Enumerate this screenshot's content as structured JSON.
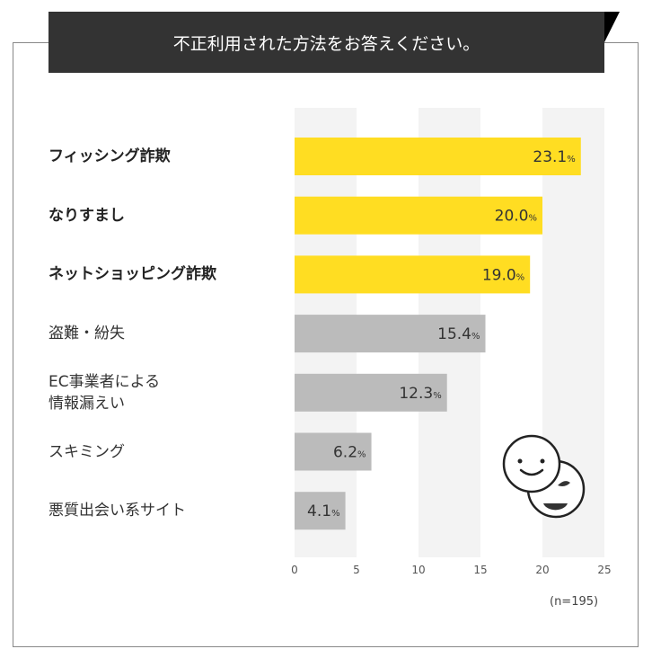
{
  "title": "不正利用された方法をお答えください。",
  "note": "(n=195)",
  "colors": {
    "highlight": "#FFDD22",
    "normal": "#BBBBBB",
    "band": "#F3F3F3",
    "title_bg": "#333333"
  },
  "chart_data": {
    "type": "bar",
    "orientation": "horizontal",
    "categories": [
      "フィッシング詐欺",
      "なりすまし",
      "ネットショッピング詐欺",
      "盗難・紛失",
      "EC事業者による\n情報漏えい",
      "スキミング",
      "悪質出会い系サイト"
    ],
    "values": [
      23.1,
      20.0,
      19.0,
      15.4,
      12.3,
      6.2,
      4.1
    ],
    "value_labels": [
      "23.1",
      "20.0",
      "19.0",
      "15.4",
      "12.3",
      "6.2",
      "4.1"
    ],
    "unit": "%",
    "highlighted": [
      true,
      true,
      true,
      false,
      false,
      false,
      false
    ],
    "xlim": [
      0,
      25
    ],
    "xticks": [
      "0",
      "5",
      "10",
      "15",
      "20",
      "25"
    ],
    "grid": "alternating vertical bands"
  },
  "icon": "two-smiley-faces-icon"
}
